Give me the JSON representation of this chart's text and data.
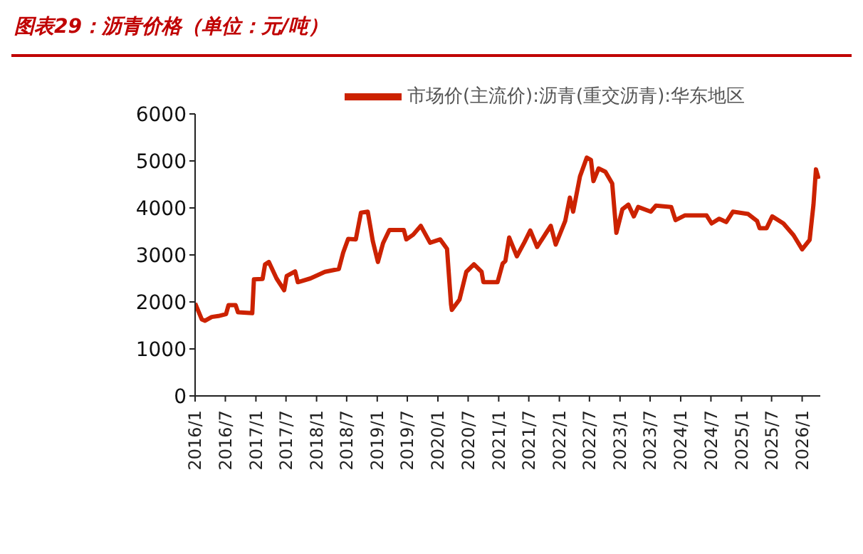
{
  "chart_data": {
    "type": "line",
    "title": "图表29：沥青价格（单位：元/吨）",
    "x": [
      "2016-01-01",
      "2016-02-10",
      "2016-03-01",
      "2016-04-10",
      "2016-05-20",
      "2016-07-05",
      "2016-07-20",
      "2016-09-01",
      "2016-09-15",
      "2016-12-10",
      "2016-12-20",
      "2017-02-10",
      "2017-02-25",
      "2017-03-20",
      "2017-05-05",
      "2017-06-20",
      "2017-07-05",
      "2017-08-25",
      "2017-09-10",
      "2017-11-25",
      "2018-02-20",
      "2018-05-15",
      "2018-06-10",
      "2018-07-10",
      "2018-08-25",
      "2018-09-25",
      "2018-11-05",
      "2018-12-05",
      "2019-01-05",
      "2019-02-05",
      "2019-03-15",
      "2019-06-10",
      "2019-06-25",
      "2019-08-05",
      "2019-09-20",
      "2019-11-15",
      "2020-01-15",
      "2020-02-25",
      "2020-03-20",
      "2020-03-25",
      "2020-05-10",
      "2020-06-20",
      "2020-08-05",
      "2020-09-20",
      "2020-10-01",
      "2020-12-25",
      "2021-01-25",
      "2021-02-10",
      "2021-03-05",
      "2021-04-20",
      "2021-06-05",
      "2021-07-10",
      "2021-08-20",
      "2021-11-10",
      "2021-12-10",
      "2022-02-05",
      "2022-03-05",
      "2022-03-25",
      "2022-05-05",
      "2022-06-15",
      "2022-07-10",
      "2022-07-25",
      "2022-08-25",
      "2022-10-05",
      "2022-11-15",
      "2022-12-10",
      "2023-01-15",
      "2023-02-20",
      "2023-03-25",
      "2023-04-20",
      "2023-07-05",
      "2023-08-05",
      "2023-11-05",
      "2023-12-01",
      "2024-01-25",
      "2024-06-05",
      "2024-07-05",
      "2024-08-20",
      "2024-10-01",
      "2024-11-10",
      "2025-02-10",
      "2025-04-05",
      "2025-04-20",
      "2025-06-01",
      "2025-07-05",
      "2025-09-10",
      "2025-11-10",
      "2026-01-01",
      "2026-02-15",
      "2026-03-10",
      "2026-03-25",
      "2026-04-10"
    ],
    "series": [
      {
        "name": "市场价(主流价):沥青(重交沥青):华东地区",
        "color": "#cc2200",
        "values": [
          1970,
          1630,
          1600,
          1680,
          1700,
          1740,
          1930,
          1930,
          1780,
          1760,
          2480,
          2490,
          2800,
          2850,
          2500,
          2250,
          2550,
          2650,
          2420,
          2500,
          2640,
          2700,
          3050,
          3340,
          3330,
          3900,
          3920,
          3300,
          2850,
          3250,
          3530,
          3530,
          3330,
          3430,
          3620,
          3260,
          3330,
          3130,
          1950,
          1830,
          2050,
          2640,
          2800,
          2640,
          2420,
          2420,
          2820,
          2870,
          3370,
          2970,
          3270,
          3520,
          3170,
          3620,
          3220,
          3720,
          4220,
          3920,
          4670,
          5070,
          5020,
          4570,
          4840,
          4770,
          4520,
          3470,
          3970,
          4070,
          3820,
          4020,
          3920,
          4050,
          4020,
          3740,
          3840,
          3840,
          3670,
          3770,
          3700,
          3920,
          3870,
          3720,
          3570,
          3570,
          3820,
          3670,
          3420,
          3120,
          3320,
          4070,
          4820,
          4620
        ]
      }
    ],
    "xlim": [
      "2016-01-01",
      "2026-04-20"
    ],
    "xticks": [
      {
        "value": "2016-01",
        "label": "2016/1"
      },
      {
        "value": "2016-07",
        "label": "2016/7"
      },
      {
        "value": "2017-01",
        "label": "2017/1"
      },
      {
        "value": "2017-07",
        "label": "2017/7"
      },
      {
        "value": "2018-01",
        "label": "2018/1"
      },
      {
        "value": "2018-07",
        "label": "2018/7"
      },
      {
        "value": "2019-01",
        "label": "2019/1"
      },
      {
        "value": "2019-07",
        "label": "2019/7"
      },
      {
        "value": "2020-01",
        "label": "2020/1"
      },
      {
        "value": "2020-07",
        "label": "2020/7"
      },
      {
        "value": "2021-01",
        "label": "2021/1"
      },
      {
        "value": "2021-07",
        "label": "2021/7"
      },
      {
        "value": "2022-01",
        "label": "2022/1"
      },
      {
        "value": "2022-07",
        "label": "2022/7"
      },
      {
        "value": "2023-01",
        "label": "2023/1"
      },
      {
        "value": "2023-07",
        "label": "2023/7"
      },
      {
        "value": "2024-01",
        "label": "2024/1"
      },
      {
        "value": "2024-07",
        "label": "2024/7"
      },
      {
        "value": "2025-01",
        "label": "2025/1"
      },
      {
        "value": "2025-07",
        "label": "2025/7"
      },
      {
        "value": "2026-01",
        "label": "2026/1"
      }
    ],
    "ylim": [
      0,
      6000
    ],
    "yticks": [
      0,
      1000,
      2000,
      3000,
      4000,
      5000,
      6000
    ],
    "legend": "top",
    "grid": false,
    "marker": "none",
    "line_style": "solid"
  }
}
